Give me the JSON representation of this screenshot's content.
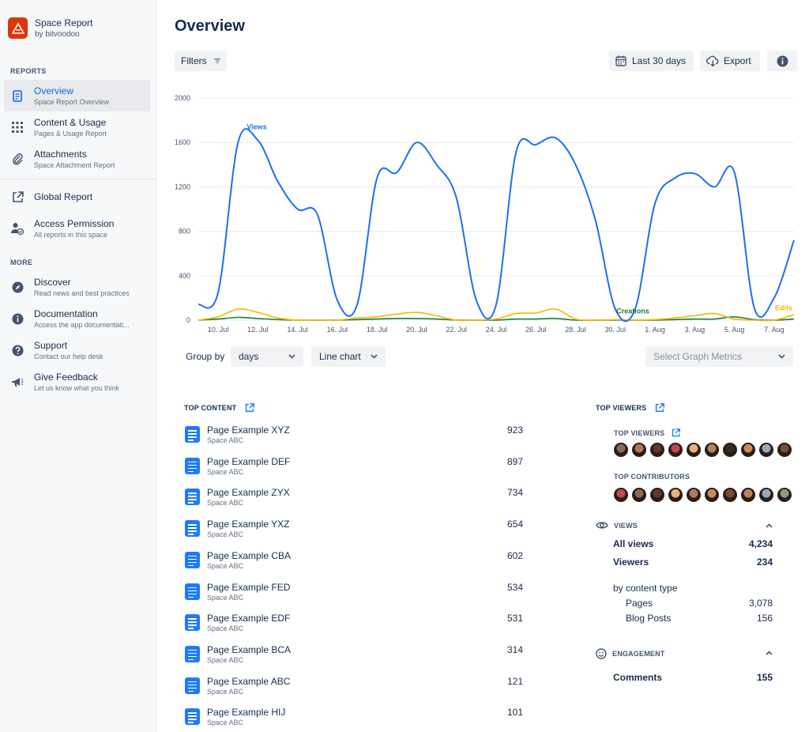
{
  "app": {
    "title": "Space Report",
    "subtitle": "by bitvoodoo"
  },
  "sidebar": {
    "reports_label": "REPORTS",
    "more_label": "MORE",
    "items": [
      {
        "title": "Overview",
        "sub": "Space Report Overview",
        "icon": "document-icon",
        "active": true
      },
      {
        "title": "Content & Usage",
        "sub": "Pages & Usage Report",
        "icon": "grid-icon"
      },
      {
        "title": "Attachments",
        "sub": "Space Attachment Report",
        "icon": "paperclip-icon"
      },
      {
        "title": "Global Report",
        "sub": "",
        "icon": "external-link-icon"
      },
      {
        "title": "Access Permission",
        "sub": "All reports in this space",
        "icon": "user-check-icon"
      },
      {
        "title": "Discover",
        "sub": "Read news and best practices",
        "icon": "compass-icon"
      },
      {
        "title": "Documentation",
        "sub": "Access the app documentati...",
        "icon": "info-icon"
      },
      {
        "title": "Support",
        "sub": "Contact our help desk",
        "icon": "question-icon"
      },
      {
        "title": "Give Feedback",
        "sub": "Let us know what you think",
        "icon": "megaphone-icon"
      }
    ]
  },
  "main": {
    "title": "Overview",
    "filters_label": "Filters",
    "date_range_label": "Last 30 days",
    "export_label": "Export",
    "group_by_label": "Group by",
    "group_by_value": "days",
    "chart_type_value": "Line chart",
    "metrics_placeholder": "Select Graph Metrics"
  },
  "chart_data": {
    "type": "line",
    "x": [
      "9. Jul",
      "10. Jul",
      "11. Jul",
      "12. Jul",
      "13. Jul",
      "14. Jul",
      "15. Jul",
      "16. Jul",
      "17. Jul",
      "18. Jul",
      "19. Jul",
      "20. Jul",
      "21. Jul",
      "22. Jul",
      "23. Jul",
      "24. Jul",
      "25. Jul",
      "26. Jul",
      "27. Jul",
      "28. Jul",
      "29. Jul",
      "30. Jul",
      "31. Jul",
      "1. Aug",
      "2. Aug",
      "3. Aug",
      "4. Aug",
      "5. Aug",
      "6. Aug",
      "7. Aug",
      "8. Aug"
    ],
    "x_tick_labels": [
      "10. Jul",
      "12. Jul",
      "14. Jul",
      "16. Jul",
      "18. Jul",
      "20. Jul",
      "22. Jul",
      "24. Jul",
      "26. Jul",
      "28. Jul",
      "30. Jul",
      "1. Aug",
      "3. Aug",
      "5. Aug",
      "7. Aug"
    ],
    "y_ticks": [
      0,
      400,
      800,
      1200,
      1600,
      2000
    ],
    "ylim": [
      0,
      2000
    ],
    "series": [
      {
        "name": "Views",
        "color": "#1d6fef",
        "values": [
          140,
          250,
          1600,
          1620,
          1250,
          1000,
          950,
          180,
          140,
          1280,
          1330,
          1600,
          1400,
          1100,
          180,
          140,
          1510,
          1580,
          1640,
          1400,
          900,
          100,
          100,
          1050,
          1280,
          1320,
          1200,
          1330,
          110,
          200,
          720
        ]
      },
      {
        "name": "Edits",
        "color": "#f5b800",
        "values": [
          0,
          30,
          100,
          70,
          20,
          0,
          0,
          0,
          20,
          30,
          55,
          70,
          40,
          0,
          0,
          10,
          60,
          65,
          100,
          10,
          0,
          5,
          0,
          5,
          20,
          40,
          60,
          10,
          0,
          0,
          50
        ]
      },
      {
        "name": "Creations",
        "color": "#1f7a3d",
        "values": [
          0,
          10,
          25,
          15,
          5,
          0,
          0,
          0,
          5,
          10,
          15,
          15,
          10,
          0,
          0,
          0,
          10,
          10,
          15,
          0,
          0,
          0,
          0,
          0,
          5,
          10,
          10,
          30,
          5,
          0,
          10
        ]
      }
    ]
  },
  "top_content": {
    "title": "TOP CONTENT",
    "rows": [
      {
        "title": "Page Example XYZ",
        "space": "Space ABC",
        "value": "923"
      },
      {
        "title": "Page Example DEF",
        "space": "Space ABC",
        "value": "897"
      },
      {
        "title": "Page Example ZYX",
        "space": "Space ABC",
        "value": "734"
      },
      {
        "title": "Page Example YXZ",
        "space": "Space ABC",
        "value": "654"
      },
      {
        "title": "Page Example CBA",
        "space": "Space ABC",
        "value": "602"
      },
      {
        "title": "Page Example FED",
        "space": "Space ABC",
        "value": "534"
      },
      {
        "title": "Page Example EDF",
        "space": "Space ABC",
        "value": "531"
      },
      {
        "title": "Page Example BCA",
        "space": "Space ABC",
        "value": "314"
      },
      {
        "title": "Page Example ABC",
        "space": "Space ABC",
        "value": "121"
      },
      {
        "title": "Page Example HIJ",
        "space": "Space ABC",
        "value": "101"
      }
    ]
  },
  "top_viewers": {
    "title": "TOP VIEWERS",
    "viewers_label": "TOP VIEWERS",
    "contributors_label": "TOP CONTRIBUTORS",
    "viewer_colors": [
      "#8a6a55",
      "#b07a5a",
      "#5b3a2a",
      "#c04a4a",
      "#e8b07a",
      "#b8835f",
      "#3a2a20",
      "#c98a5f",
      "#9ba8b8",
      "#7a4a3a"
    ],
    "contributor_colors": [
      "#c04a4a",
      "#8a6a55",
      "#5b3a2a",
      "#e8b07a",
      "#b07a5a",
      "#c98a5f",
      "#7a4a3a",
      "#b8835f",
      "#9ba8b8",
      "#8f9a7a"
    ]
  },
  "views": {
    "title": "VIEWS",
    "all_views_label": "All views",
    "all_views_value": "4,234",
    "viewers_label": "Viewers",
    "viewers_value": "234",
    "by_type_label": "by content type",
    "pages_label": "Pages",
    "pages_value": "3,078",
    "blog_label": "Blog Posts",
    "blog_value": "156"
  },
  "engagement": {
    "title": "ENGAGEMENT",
    "comments_label": "Comments",
    "comments_value": "155"
  }
}
